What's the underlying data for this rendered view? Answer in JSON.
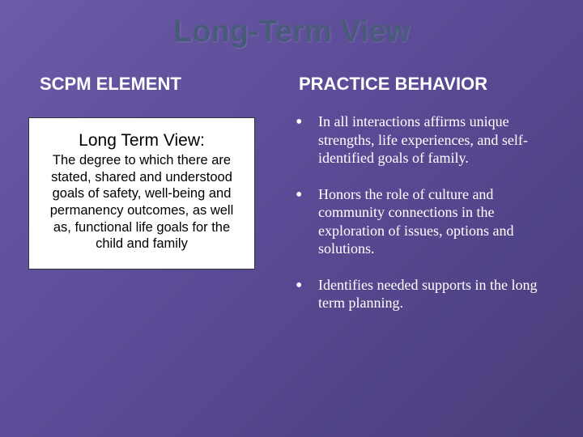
{
  "title": "Long-Term View",
  "leftHeader": "SCPM ELEMENT",
  "rightHeader": "PRACTICE BEHAVIOR",
  "box": {
    "title": "Long Term View:",
    "body": "The degree to which there are stated, shared and understood goals of safety, well-being and permanency outcomes, as well as, functional life goals for the child and family"
  },
  "bullets": [
    "In all interactions affirms unique strengths, life experiences, and self-identified goals of family.",
    "Honors the role of culture and community connections in the exploration of issues, options and solutions.",
    "Identifies needed supports in the long term planning."
  ],
  "colors": {
    "bgGradientStart": "#6b5ba8",
    "bgGradientEnd": "#4a3d7a",
    "titleColor": "#4a5a7a",
    "textColor": "#ffffff",
    "boxBg": "#ffffff",
    "boxText": "#000000"
  },
  "fonts": {
    "titleSize": 38,
    "headerSize": 22,
    "boxTitleSize": 21,
    "boxBodySize": 16.5,
    "bulletSize": 18
  }
}
